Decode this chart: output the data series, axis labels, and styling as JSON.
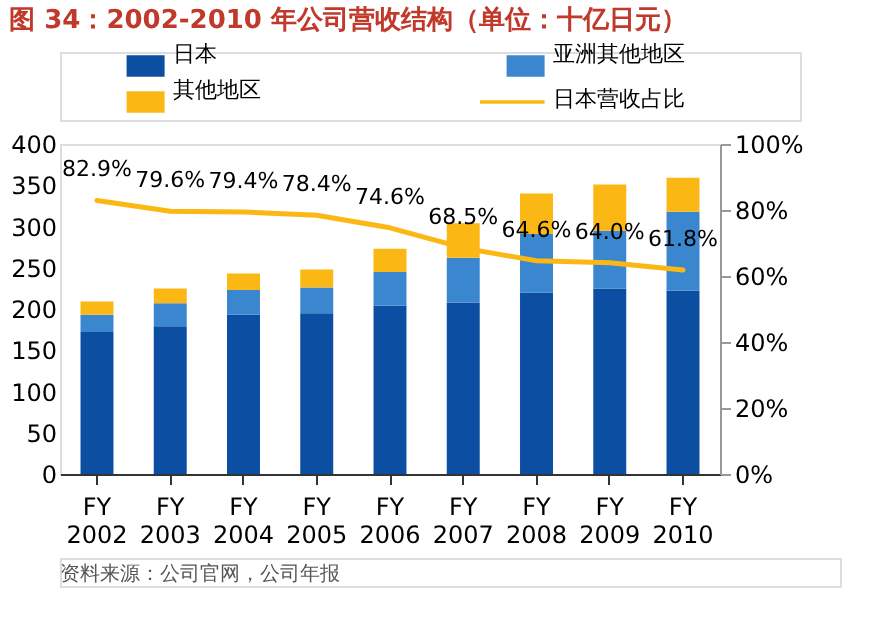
{
  "chart_data": {
    "type": "bar",
    "stacked": true,
    "title": "图 34：2002-2010 年公司营收结构（单位：十亿日元）",
    "categories": [
      "FY 2002",
      "FY 2003",
      "FY 2004",
      "FY 2005",
      "FY 2006",
      "FY 2007",
      "FY 2008",
      "FY 2009",
      "FY 2010"
    ],
    "series": [
      {
        "name": "日本",
        "color": "#0b4ea2",
        "values": [
          172,
          179,
          193,
          195,
          204,
          208,
          220,
          225,
          222
        ]
      },
      {
        "name": "亚洲其他地区",
        "color": "#3a87d0",
        "values": [
          21,
          28,
          30,
          31,
          41,
          54,
          71,
          70,
          96
        ]
      },
      {
        "name": "其他地区",
        "color": "#fbb814",
        "values": [
          16,
          18,
          20,
          22,
          28,
          42,
          49,
          56,
          41
        ]
      },
      {
        "name": "日本营收占比",
        "type": "line",
        "axis": "y2",
        "color": "#fbb814",
        "values": [
          82.9,
          79.6,
          79.4,
          78.4,
          74.6,
          68.5,
          64.6,
          64.0,
          61.8
        ],
        "value_labels": [
          "82.9%",
          "79.6%",
          "79.4%",
          "78.4%",
          "74.6%",
          "68.5%",
          "64.6%",
          "64.0%",
          "61.8%"
        ]
      }
    ],
    "ylim": [
      0,
      400
    ],
    "yticks": [
      0,
      50,
      100,
      150,
      200,
      250,
      300,
      350,
      400
    ],
    "y2lim": [
      0,
      100
    ],
    "y2ticks": [
      {
        "value": 0,
        "label": "0%"
      },
      {
        "value": 20,
        "label": "20%"
      },
      {
        "value": 40,
        "label": "40%"
      },
      {
        "value": 60,
        "label": "60%"
      },
      {
        "value": 80,
        "label": "80%"
      },
      {
        "value": 100,
        "label": "100%"
      }
    ],
    "grid": false,
    "legend": "top",
    "marker": "none",
    "annotations": [
      "资料来源：公司官网，公司年报"
    ]
  }
}
